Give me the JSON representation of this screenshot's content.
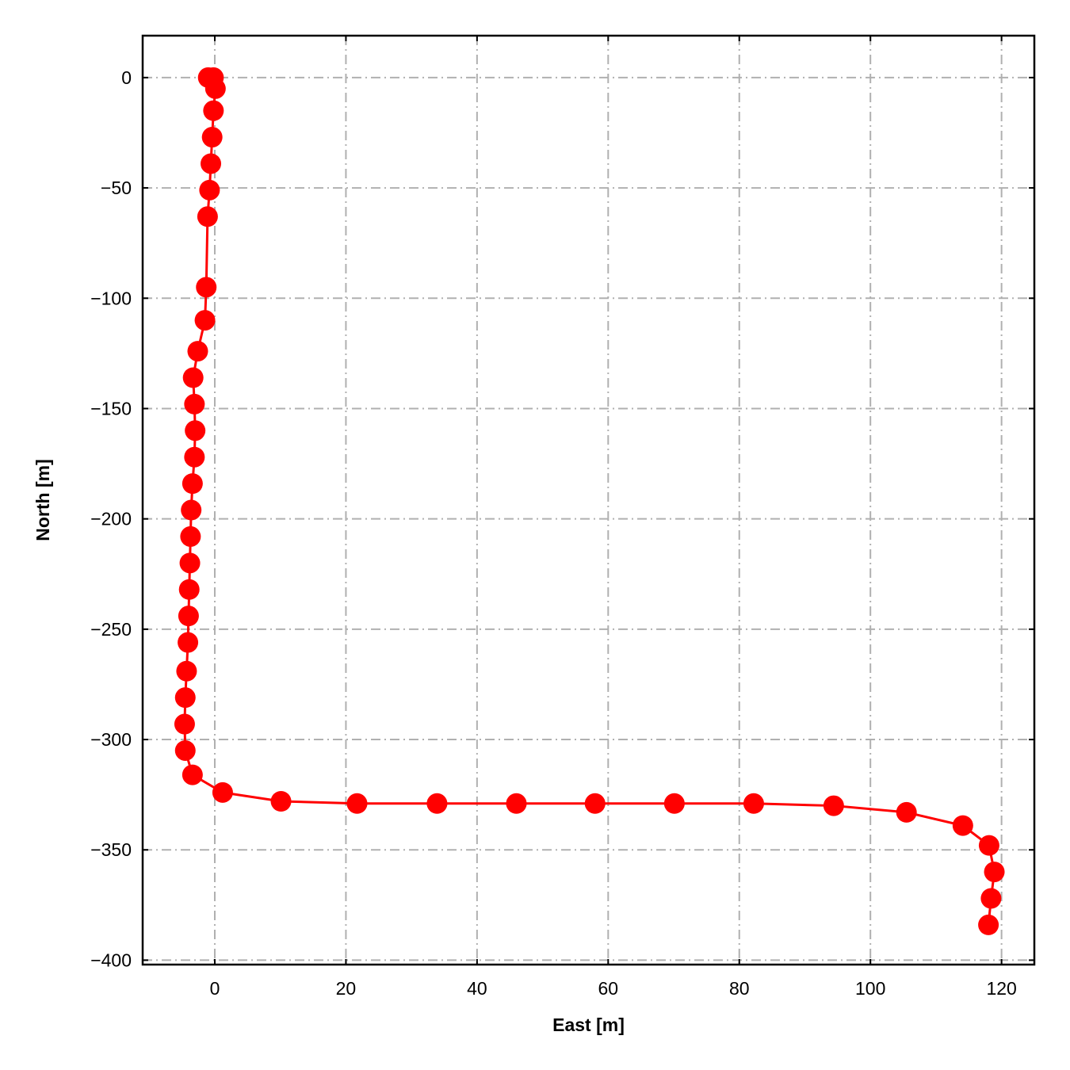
{
  "chart_data": {
    "type": "line",
    "title": "",
    "xlabel": "East [m]",
    "ylabel": "North [m]",
    "xlim": [
      -11,
      125
    ],
    "ylim": [
      -402,
      19
    ],
    "xticks": [
      0,
      20,
      40,
      60,
      80,
      100,
      120
    ],
    "xtick_labels": [
      "0",
      "20",
      "40",
      "60",
      "80",
      "100",
      "120"
    ],
    "yticks": [
      0,
      -50,
      -100,
      -150,
      -200,
      -250,
      -300,
      -350,
      -400
    ],
    "ytick_labels": [
      "0",
      "−50",
      "−100",
      "−150",
      "−200",
      "−250",
      "−300",
      "−350",
      "−400"
    ],
    "grid": true,
    "legend": false,
    "series": [
      {
        "color": "#ff0000",
        "marker": "circle",
        "x": [
          -1.0,
          -0.2,
          0.1,
          -0.2,
          -0.4,
          -0.6,
          -0.8,
          -1.1,
          -1.3,
          -1.5,
          -2.6,
          -3.3,
          -3.1,
          -3.0,
          -3.1,
          -3.4,
          -3.6,
          -3.7,
          -3.8,
          -3.9,
          -4.0,
          -4.1,
          -4.3,
          -4.5,
          -4.6,
          -4.5,
          -3.4,
          1.2,
          10.1,
          21.7,
          33.9,
          46.0,
          58.0,
          70.1,
          82.2,
          94.4,
          105.5,
          114.1,
          118.1,
          118.9,
          118.4,
          118.0
        ],
        "y": [
          0,
          0,
          -5,
          -15,
          -27,
          -39,
          -51,
          -63,
          -95,
          -110,
          -124,
          -136,
          -148,
          -160,
          -172,
          -184,
          -196,
          -208,
          -220,
          -232,
          -244,
          -256,
          -269,
          -281,
          -293,
          -305,
          -316,
          -324,
          -328,
          -329,
          -329,
          -329,
          -329,
          -329,
          -329,
          -330,
          -333,
          -339,
          -348,
          -360,
          -372,
          -384
        ]
      }
    ]
  }
}
